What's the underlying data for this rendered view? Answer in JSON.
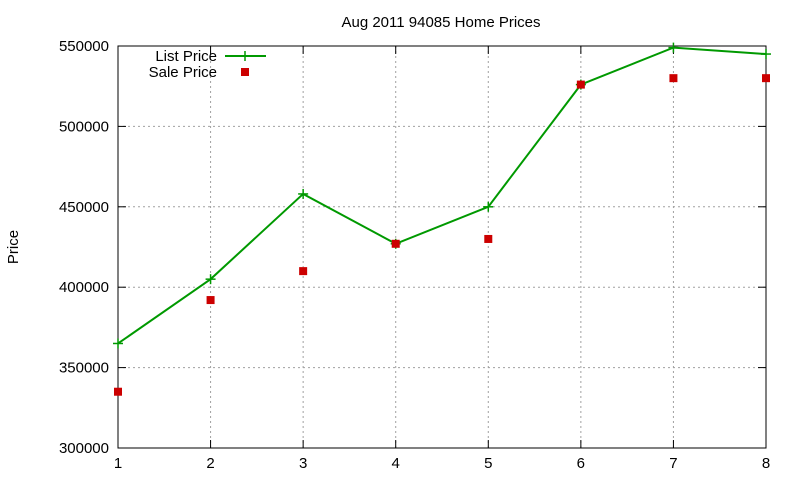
{
  "chart_data": {
    "type": "line",
    "title": "Aug 2011 94085 Home Prices",
    "xlabel": "",
    "ylabel": "Price",
    "x": [
      1,
      2,
      3,
      4,
      5,
      6,
      7,
      8
    ],
    "xlim": [
      1,
      8
    ],
    "ylim": [
      300000,
      550000
    ],
    "xticks": [
      "1",
      "2",
      "3",
      "4",
      "5",
      "6",
      "7",
      "8"
    ],
    "yticks": [
      "300000",
      "350000",
      "400000",
      "450000",
      "500000",
      "550000"
    ],
    "grid": true,
    "legend_position": "top-left",
    "series": [
      {
        "name": "List Price",
        "style": "line-with-plus-markers",
        "color": "#009900",
        "values": [
          365000,
          405000,
          458000,
          427000,
          450000,
          526000,
          549000,
          545000
        ]
      },
      {
        "name": "Sale Price",
        "style": "square-markers",
        "color": "#cc0000",
        "values": [
          335000,
          392000,
          410000,
          427000,
          430000,
          526000,
          530000,
          530000
        ]
      }
    ]
  }
}
